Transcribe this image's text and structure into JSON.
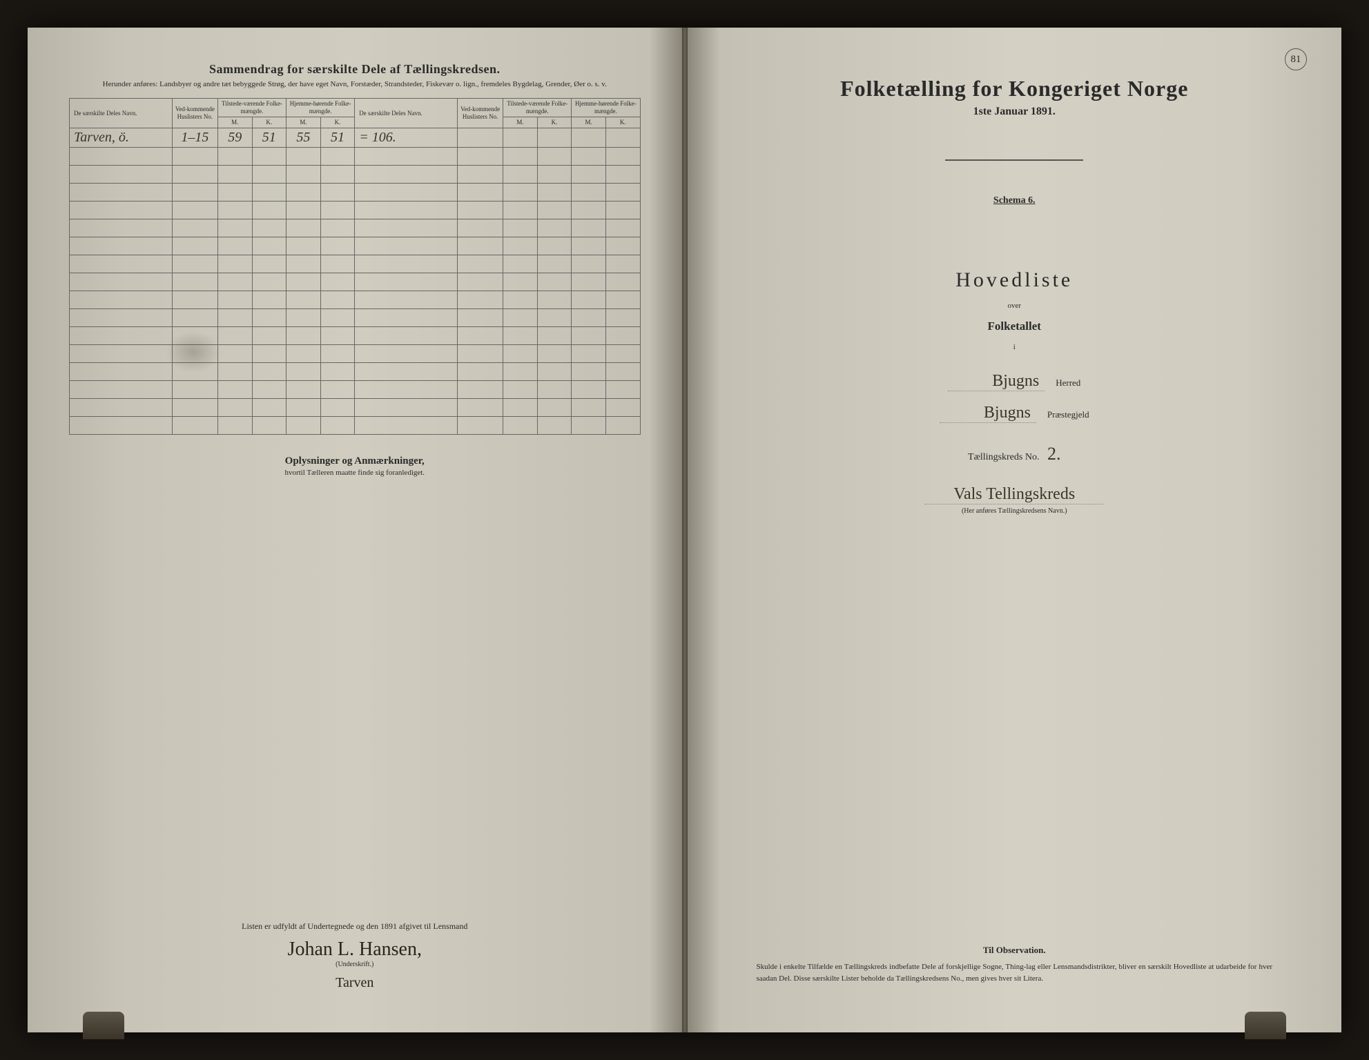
{
  "page_number_right": "81",
  "left_page": {
    "title": "Sammendrag for særskilte Dele af Tællingskredsen.",
    "subtitle": "Herunder anføres: Landsbyer og andre tæt bebyggede Strøg, der have eget Navn, Forstæder, Strandsteder, Fiskevær o. lign., fremdeles Bygdelag, Grender, Øer o. s. v.",
    "table": {
      "headers": {
        "name": "De særskilte Deles Navn.",
        "huslister": "Ved-kommende Huslisters No.",
        "tilstede": "Tilstede-værende Folke-mængde.",
        "hjemme": "Hjemme-hørende Folke-mængde.",
        "m": "M.",
        "k": "K."
      },
      "rows": [
        {
          "name": "Tarven, ö.",
          "huslister": "1–15",
          "tilstede_m": "59",
          "tilstede_k": "51",
          "hjemme_m": "55",
          "hjemme_k": "51",
          "sum": "= 106."
        }
      ],
      "empty_rows": 16
    },
    "notes": {
      "title": "Oplysninger og Anmærkninger,",
      "subtitle": "hvortil Tælleren maatte finde sig foranlediget."
    },
    "signature": {
      "line": "Listen er udfyldt af Undertegnede og den            1891 afgivet til Lensmand",
      "name": "Johan L. Hansen,",
      "label": "(Underskrift.)",
      "place": "Tarven"
    }
  },
  "right_page": {
    "main_title": "Folketælling for Kongeriget Norge",
    "main_date": "1ste Januar 1891.",
    "schema": "Schema 6.",
    "hovedliste": "Hovedliste",
    "over": "over",
    "folketallet": "Folketallet",
    "i": "i",
    "herred_hw": "Bjugns",
    "herred_label": "Herred",
    "praestegjeld_hw": "Bjugns",
    "praestegjeld_label": "Præstegjeld",
    "kreds_label": "Tællingskreds No.",
    "kreds_no": "2.",
    "kreds_name": "Vals Tellingskreds",
    "kreds_sub": "(Her anføres Tællingskredsens Navn.)",
    "observation": {
      "title": "Til Observation.",
      "text": "Skulde i enkelte Tilfælde en Tællingskreds indbefatte Dele af forskjellige Sogne, Thing-lag eller Lensmandsdistrikter, bliver en særskilt Hovedliste at udarbeide for hver saadan Del. Disse særskilte Lister beholde da Tællingskredsens No., men gives hver sit Litera."
    }
  },
  "colors": {
    "paper": "#d4d0c4",
    "ink": "#2a2a2a",
    "handwriting": "#3a3528",
    "border": "#666"
  }
}
